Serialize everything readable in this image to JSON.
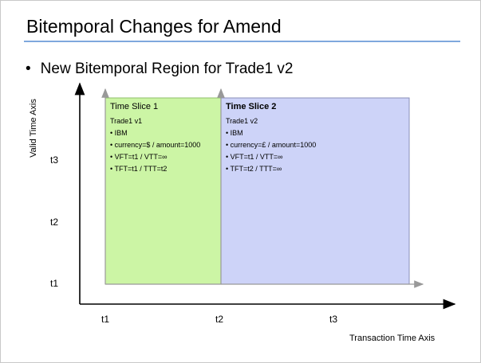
{
  "title": "Bitemporal Changes for Amend",
  "bullet": "New Bitemporal Region for Trade1 v2",
  "axes": {
    "y_label": "Valid Time Axis",
    "x_label": "Transaction Time Axis",
    "y_ticks": [
      "t3",
      "t2",
      "t1"
    ],
    "x_ticks": [
      "t1",
      "t2",
      "t3"
    ]
  },
  "slices": [
    {
      "heading": "Time Slice 1",
      "trade": "Trade1 v1",
      "lines": [
        "• IBM",
        "• currency=$ / amount=1000",
        "• VFT=t1 / VTT=∞",
        "• TFT=t1 / TTT=t2"
      ]
    },
    {
      "heading": "Time Slice 2",
      "trade": "Trade1 v2",
      "lines": [
        "• IBM",
        "• currency=£ / amount=1000",
        "• VFT=t1 / VTT=∞",
        "• TFT=t2 / TTT=∞"
      ]
    }
  ],
  "colors": {
    "slice1_fill": "#ccf5a5",
    "slice1_border": "#8fbf6a",
    "slice2_fill": "#cdd3f8",
    "slice2_border": "#8a8fb8",
    "title_rule": "#7fa8dd"
  }
}
